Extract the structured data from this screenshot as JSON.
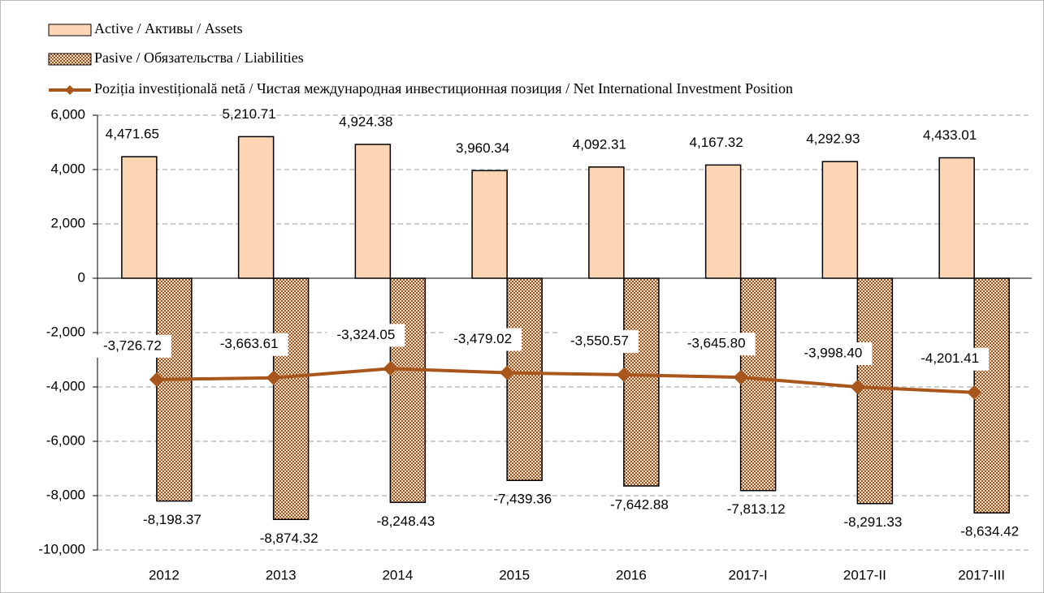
{
  "chart_data": {
    "type": "bar",
    "categories": [
      "2012",
      "2013",
      "2014",
      "2015",
      "2016",
      "2017-I",
      "2017-II",
      "2017-III"
    ],
    "series": [
      {
        "name": "Active / Активы / Assets",
        "type": "bar",
        "color": "#fcd5b5",
        "values": [
          4471.65,
          5210.71,
          4924.38,
          3960.34,
          4092.31,
          4167.32,
          4292.93,
          4433.01
        ],
        "value_labels": [
          "4,471.65",
          "5,210.71",
          "4,924.38",
          "3,960.34",
          "4,092.31",
          "4,167.32",
          "4,292.93",
          "4,433.01"
        ]
      },
      {
        "name": "Pasive / Обязательства / Liabilities",
        "type": "bar",
        "color": "#b8692e",
        "values": [
          -8198.37,
          -8874.32,
          -8248.43,
          -7439.36,
          -7642.88,
          -7813.12,
          -8291.33,
          -8634.42
        ],
        "value_labels": [
          "-8,198.37",
          "-8,874.32",
          "-8,248.43",
          "-7,439.36",
          "-7,642.88",
          "-7,813.12",
          "-8,291.33",
          "-8,634.42"
        ]
      },
      {
        "name": "Poziția investițională netă / Чистая международная инвестиционная позиция / Net International Investment Position",
        "type": "line",
        "color": "#a8561c",
        "values": [
          -3726.72,
          -3663.61,
          -3324.05,
          -3479.02,
          -3550.57,
          -3645.8,
          -3998.4,
          -4201.41
        ],
        "value_labels": [
          "-3,726.72",
          "-3,663.61",
          "-3,324.05",
          "-3,479.02",
          "-3,550.57",
          "-3,645.80",
          "-3,998.40",
          "-4,201.41"
        ]
      }
    ],
    "ylim": [
      -10000,
      6000
    ],
    "yticks": [
      {
        "value": -10000,
        "label": "-10,000"
      },
      {
        "value": -8000,
        "label": "-8,000"
      },
      {
        "value": -6000,
        "label": "-6,000"
      },
      {
        "value": -4000,
        "label": "-4,000"
      },
      {
        "value": -2000,
        "label": "-2,000"
      },
      0,
      {
        "value": 2000,
        "label": "2,000"
      },
      {
        "value": 4000,
        "label": "4,000"
      },
      {
        "value": 6000,
        "label": "6,000"
      }
    ],
    "grid": true
  }
}
